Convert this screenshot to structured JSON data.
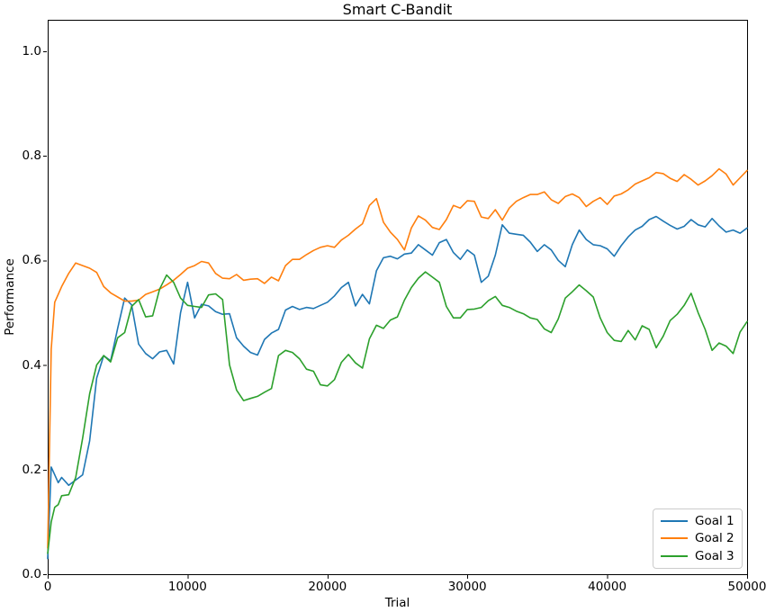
{
  "chart_data": {
    "type": "line",
    "title": "Smart C-Bandit",
    "xlabel": "Trial",
    "ylabel": "Performance",
    "xlim": [
      0,
      50000
    ],
    "ylim": [
      0,
      1.06
    ],
    "grid": false,
    "legend_position": "lower right",
    "x_ticks": [
      0,
      10000,
      20000,
      30000,
      40000,
      50000
    ],
    "x_tick_labels": [
      "0",
      "10000",
      "20000",
      "30000",
      "40000",
      "50000"
    ],
    "y_ticks": [
      0.0,
      0.2,
      0.4,
      0.6,
      0.8,
      1.0
    ],
    "y_tick_labels": [
      "0.0",
      "0.2",
      "0.4",
      "0.6",
      "0.8",
      "1.0"
    ],
    "x": [
      0,
      250,
      500,
      750,
      1000,
      1500,
      2000,
      2500,
      3000,
      3500,
      4000,
      4500,
      5000,
      5500,
      6000,
      6500,
      7000,
      7500,
      8000,
      8500,
      9000,
      9500,
      10000,
      10500,
      11000,
      11500,
      12000,
      12500,
      13000,
      13500,
      14000,
      14500,
      15000,
      15500,
      16000,
      16500,
      17000,
      17500,
      18000,
      18500,
      19000,
      19500,
      20000,
      20500,
      21000,
      21500,
      22000,
      22500,
      23000,
      23500,
      24000,
      24500,
      25000,
      25500,
      26000,
      26500,
      27000,
      27500,
      28000,
      28500,
      29000,
      29500,
      30000,
      30500,
      31000,
      31500,
      32000,
      32500,
      33000,
      33500,
      34000,
      34500,
      35000,
      35500,
      36000,
      36500,
      37000,
      37500,
      38000,
      38500,
      39000,
      39500,
      40000,
      40500,
      41000,
      41500,
      42000,
      42500,
      43000,
      43500,
      44000,
      44500,
      45000,
      45500,
      46000,
      46500,
      47000,
      47500,
      48000,
      48500,
      49000,
      49500,
      50000
    ],
    "series": [
      {
        "name": "Goal 1",
        "color": "#1f77b4",
        "values": [
          0.03,
          0.205,
          0.19,
          0.175,
          0.185,
          0.17,
          0.18,
          0.19,
          0.255,
          0.375,
          0.418,
          0.408,
          0.47,
          0.528,
          0.515,
          0.44,
          0.422,
          0.412,
          0.425,
          0.428,
          0.402,
          0.5,
          0.558,
          0.49,
          0.516,
          0.513,
          0.502,
          0.497,
          0.498,
          0.452,
          0.436,
          0.424,
          0.419,
          0.449,
          0.461,
          0.468,
          0.505,
          0.512,
          0.506,
          0.51,
          0.508,
          0.514,
          0.52,
          0.532,
          0.548,
          0.558,
          0.513,
          0.535,
          0.517,
          0.58,
          0.605,
          0.608,
          0.603,
          0.612,
          0.614,
          0.63,
          0.62,
          0.61,
          0.634,
          0.64,
          0.615,
          0.602,
          0.62,
          0.61,
          0.558,
          0.57,
          0.61,
          0.668,
          0.652,
          0.65,
          0.648,
          0.635,
          0.617,
          0.63,
          0.62,
          0.6,
          0.588,
          0.63,
          0.658,
          0.64,
          0.63,
          0.628,
          0.622,
          0.608,
          0.628,
          0.645,
          0.658,
          0.665,
          0.678,
          0.684,
          0.675,
          0.667,
          0.66,
          0.665,
          0.678,
          0.668,
          0.664,
          0.68,
          0.666,
          0.654,
          0.658,
          0.652,
          0.662
        ]
      },
      {
        "name": "Goal 2",
        "color": "#ff7f0e",
        "values": [
          0.05,
          0.43,
          0.52,
          0.535,
          0.55,
          0.575,
          0.595,
          0.59,
          0.585,
          0.577,
          0.55,
          0.538,
          0.53,
          0.522,
          0.522,
          0.524,
          0.535,
          0.54,
          0.545,
          0.553,
          0.562,
          0.573,
          0.585,
          0.59,
          0.598,
          0.595,
          0.575,
          0.566,
          0.565,
          0.573,
          0.562,
          0.564,
          0.565,
          0.556,
          0.568,
          0.561,
          0.59,
          0.602,
          0.602,
          0.611,
          0.619,
          0.625,
          0.628,
          0.625,
          0.639,
          0.648,
          0.66,
          0.67,
          0.705,
          0.718,
          0.673,
          0.654,
          0.64,
          0.62,
          0.662,
          0.685,
          0.677,
          0.663,
          0.659,
          0.678,
          0.705,
          0.7,
          0.714,
          0.713,
          0.683,
          0.68,
          0.697,
          0.677,
          0.7,
          0.713,
          0.72,
          0.726,
          0.726,
          0.731,
          0.716,
          0.709,
          0.722,
          0.727,
          0.72,
          0.703,
          0.713,
          0.72,
          0.707,
          0.723,
          0.727,
          0.735,
          0.746,
          0.752,
          0.758,
          0.768,
          0.766,
          0.757,
          0.751,
          0.764,
          0.755,
          0.744,
          0.752,
          0.762,
          0.775,
          0.765,
          0.744,
          0.758,
          0.772
        ]
      },
      {
        "name": "Goal 3",
        "color": "#2ca02c",
        "values": [
          0.04,
          0.1,
          0.128,
          0.133,
          0.15,
          0.152,
          0.185,
          0.26,
          0.345,
          0.4,
          0.418,
          0.406,
          0.452,
          0.462,
          0.512,
          0.525,
          0.492,
          0.494,
          0.545,
          0.572,
          0.558,
          0.528,
          0.514,
          0.512,
          0.51,
          0.534,
          0.536,
          0.525,
          0.4,
          0.352,
          0.332,
          0.336,
          0.34,
          0.348,
          0.355,
          0.418,
          0.428,
          0.424,
          0.412,
          0.392,
          0.388,
          0.362,
          0.36,
          0.372,
          0.405,
          0.42,
          0.404,
          0.394,
          0.45,
          0.476,
          0.47,
          0.486,
          0.492,
          0.524,
          0.548,
          0.566,
          0.578,
          0.568,
          0.558,
          0.512,
          0.49,
          0.49,
          0.506,
          0.507,
          0.51,
          0.523,
          0.531,
          0.514,
          0.51,
          0.503,
          0.498,
          0.49,
          0.487,
          0.469,
          0.462,
          0.488,
          0.528,
          0.54,
          0.553,
          0.542,
          0.53,
          0.49,
          0.462,
          0.447,
          0.445,
          0.466,
          0.448,
          0.475,
          0.468,
          0.433,
          0.455,
          0.485,
          0.497,
          0.514,
          0.537,
          0.5,
          0.468,
          0.428,
          0.442,
          0.436,
          0.422,
          0.463,
          0.483
        ]
      }
    ]
  }
}
